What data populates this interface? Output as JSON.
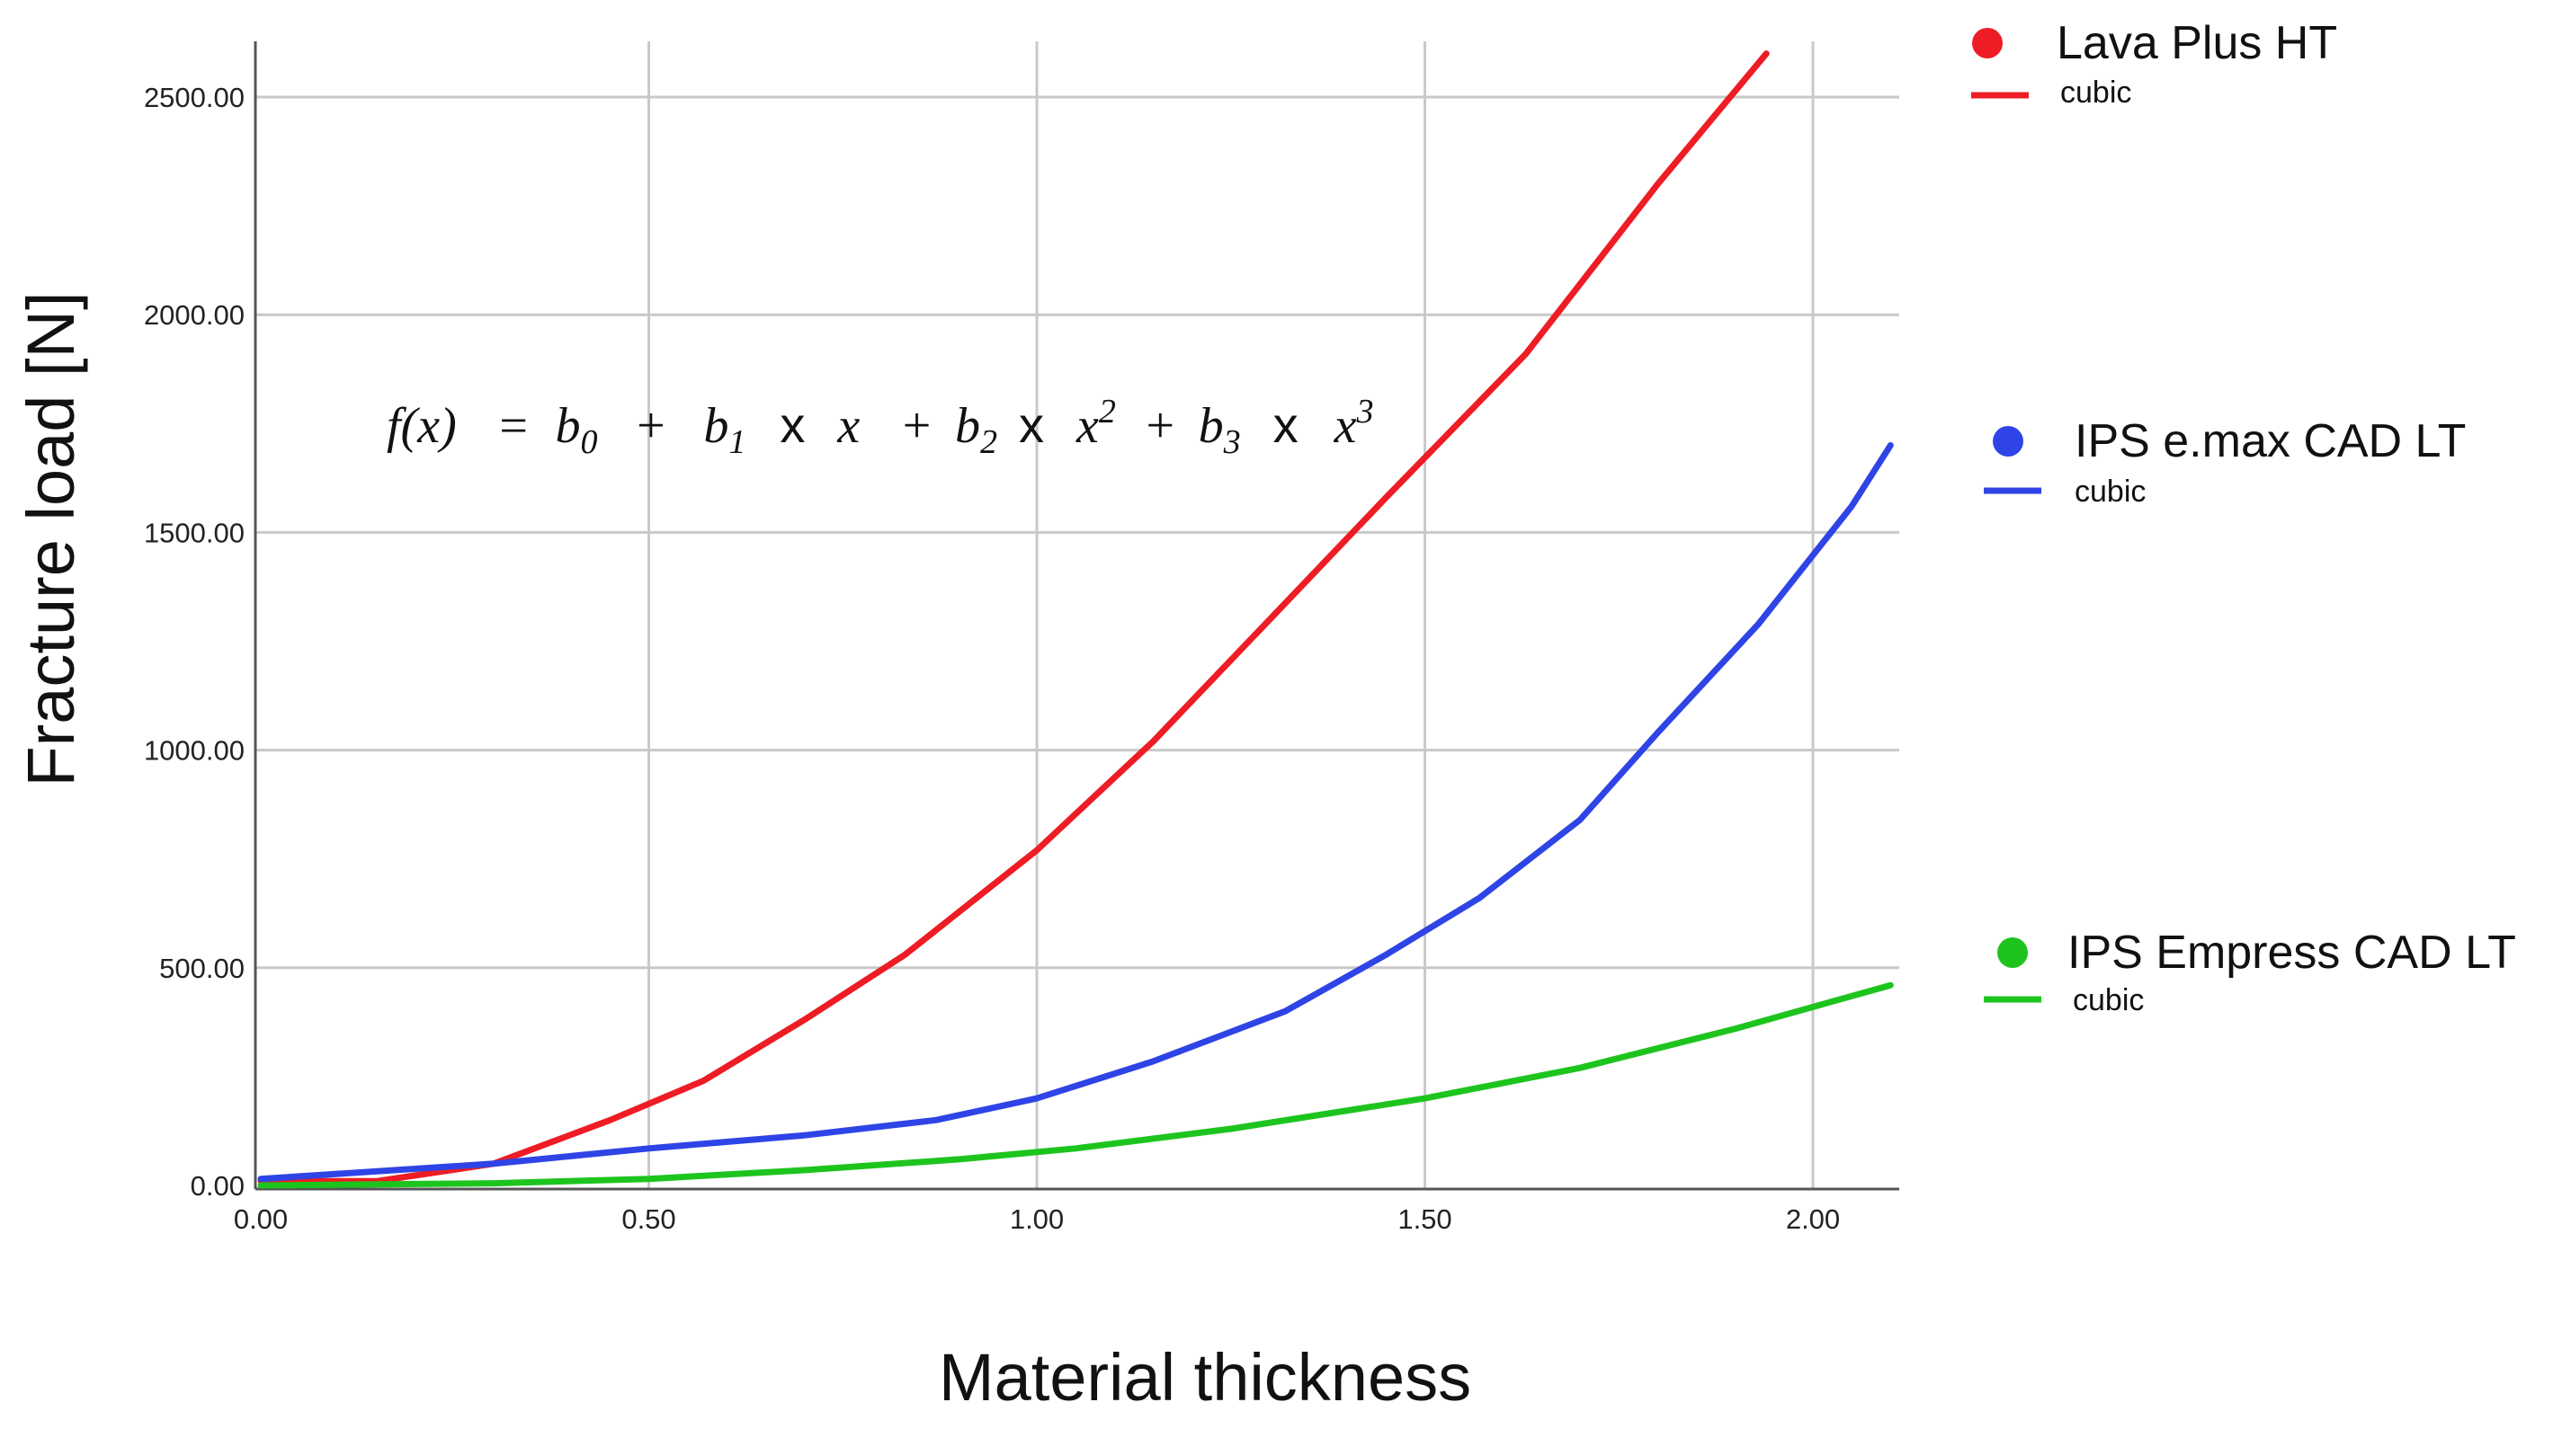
{
  "chart_data": {
    "type": "line",
    "title": "",
    "xlabel": "Material thickness",
    "ylabel": "Fracture load [N]",
    "xlim": [
      0,
      2.1
    ],
    "ylim": [
      0,
      2650
    ],
    "grid": true,
    "x_ticks": [
      0,
      0.5,
      1.0,
      1.5,
      2.0
    ],
    "x_tick_labels": [
      "0.00",
      "0.50",
      "1.00",
      "1.50",
      "2.00"
    ],
    "y_ticks": [
      0,
      500,
      1000,
      1500,
      2000,
      2500
    ],
    "y_tick_labels": [
      "0.00",
      "500.00",
      "1000.00",
      "1500.00",
      "2000.00",
      "2500.00"
    ],
    "annotation": {
      "f": "f(x)",
      "eq": "=",
      "b0": "b",
      "b0_sub": "0",
      "plus1": "+",
      "b1": "b",
      "b1_sub": "1",
      "times1": "x",
      "x1": "x",
      "plus2": "+",
      "b2": "b",
      "b2_sub": "2",
      "times2": "x",
      "x2": "x",
      "x2_sup": "2",
      "plus3": "+",
      "b3": "b",
      "b3_sub": "3",
      "times3": "x",
      "x3": "x",
      "x3_sup": "3"
    },
    "legend_position": "right",
    "series": [
      {
        "name": "Lava Plus HT",
        "fit": "cubic",
        "color": "#ee1c24",
        "x": [
          0.0,
          0.15,
          0.3,
          0.45,
          0.57,
          0.7,
          0.83,
          1.0,
          1.15,
          1.3,
          1.45,
          1.63,
          1.8,
          1.94
        ],
        "y": [
          10,
          10,
          50,
          150,
          240,
          380,
          530,
          770,
          1020,
          1300,
          1580,
          1910,
          2300,
          2600
        ]
      },
      {
        "name": "IPS e.max CAD LT",
        "fit": "cubic",
        "color": "#2e44e6",
        "x": [
          0.0,
          0.3,
          0.5,
          0.7,
          0.87,
          1.0,
          1.15,
          1.32,
          1.45,
          1.57,
          1.7,
          1.8,
          1.93,
          2.05,
          2.1
        ],
        "y": [
          15,
          50,
          85,
          115,
          150,
          200,
          285,
          400,
          530,
          660,
          840,
          1040,
          1290,
          1560,
          1700
        ]
      },
      {
        "name": "IPS Empress CAD LT",
        "fit": "cubic",
        "color": "#1ec41e",
        "x": [
          0.0,
          0.3,
          0.5,
          0.7,
          0.9,
          1.05,
          1.25,
          1.5,
          1.7,
          1.9,
          2.1
        ],
        "y": [
          0,
          5,
          15,
          35,
          60,
          85,
          130,
          200,
          270,
          360,
          460
        ]
      }
    ]
  }
}
